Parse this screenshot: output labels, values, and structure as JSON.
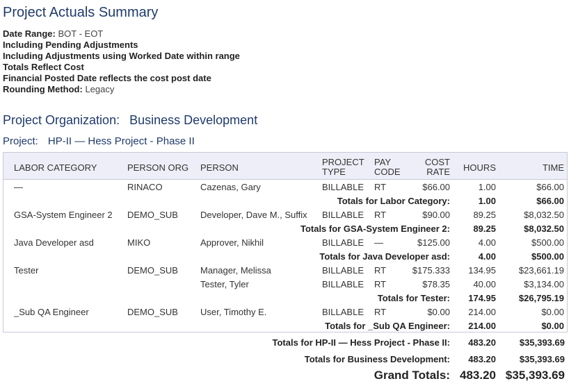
{
  "report": {
    "title": "Project Actuals Summary",
    "date_range_label": "Date Range:",
    "date_range_value": "BOT - EOT",
    "line_pending": "Including Pending Adjustments",
    "line_adjustments": "Including Adjustments using Worked Date within range",
    "line_totals": "Totals Reflect Cost",
    "line_financial": "Financial Posted Date reflects the cost post date",
    "rounding_label": "Rounding Method:",
    "rounding_value": "Legacy"
  },
  "organization": {
    "label": "Project Organization:",
    "value": "Business Development"
  },
  "project": {
    "label": "Project:",
    "value": "HP-II — Hess Project - Phase II"
  },
  "columns": {
    "labor_category": "LABOR CATEGORY",
    "person_org": "PERSON ORG",
    "person": "PERSON",
    "project_type": "PROJECT\nTYPE",
    "pay_code": "PAY\nCODE",
    "cost_rate": "COST\nRATE",
    "hours": "HOURS",
    "time": "TIME"
  },
  "rows": [
    {
      "category": "—",
      "org": "RINACO",
      "person": "Cazenas, Gary",
      "type": "BILLABLE",
      "pay": "RT",
      "rate": "$66.00",
      "hours": "1.00",
      "time": "$66.00"
    },
    {
      "total_label": "Totals for Labor Category:",
      "hours": "1.00",
      "time": "$66.00"
    },
    {
      "category": "GSA-System Engineer 2",
      "org": "DEMO_SUB",
      "person": "Developer, Dave M., Suffix",
      "type": "BILLABLE",
      "pay": "RT",
      "rate": "$90.00",
      "hours": "89.25",
      "time": "$8,032.50"
    },
    {
      "total_label": "Totals for GSA-System Engineer 2:",
      "hours": "89.25",
      "time": "$8,032.50"
    },
    {
      "category": "Java Developer asd",
      "org": "MIKO",
      "person": "Approver, Nikhil",
      "type": "BILLABLE",
      "pay": "—",
      "rate": "$125.00",
      "hours": "4.00",
      "time": "$500.00"
    },
    {
      "total_label": "Totals for Java Developer asd:",
      "hours": "4.00",
      "time": "$500.00"
    },
    {
      "category": "Tester",
      "org": "DEMO_SUB",
      "person": "Manager, Melissa",
      "type": "BILLABLE",
      "pay": "RT",
      "rate": "$175.333",
      "hours": "134.95",
      "time": "$23,661.19"
    },
    {
      "category": "",
      "org": "",
      "person": "Tester, Tyler",
      "type": "BILLABLE",
      "pay": "RT",
      "rate": "$78.35",
      "hours": "40.00",
      "time": "$3,134.00"
    },
    {
      "total_label": "Totals for Tester:",
      "hours": "174.95",
      "time": "$26,795.19"
    },
    {
      "category": "_Sub QA Engineer",
      "org": "DEMO_SUB",
      "person": "User, Timothy E.",
      "type": "BILLABLE",
      "pay": "RT",
      "rate": "$0.00",
      "hours": "214.00",
      "time": "$0.00"
    },
    {
      "total_label": "Totals for _Sub QA Engineer:",
      "hours": "214.00",
      "time": "$0.00"
    }
  ],
  "project_total": {
    "label": "Totals for HP-II — Hess Project - Phase II:",
    "hours": "483.20",
    "time": "$35,393.69"
  },
  "org_total": {
    "label": "Totals for Business Development:",
    "hours": "483.20",
    "time": "$35,393.69"
  },
  "grand_total": {
    "label": "Grand Totals:",
    "hours": "483.20",
    "time": "$35,393.69"
  }
}
